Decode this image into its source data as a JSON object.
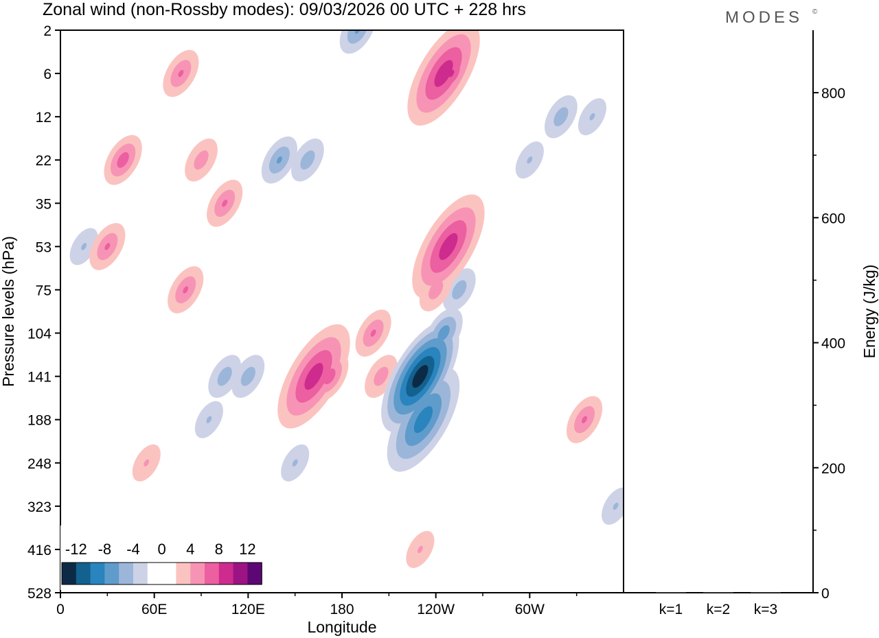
{
  "chart_data": {
    "type": "heatmap",
    "title": "Zonal wind (non-Rossby modes):  09/03/2026  00 UTC  + 228 hrs",
    "brand": "MODES",
    "brand_mark": "©",
    "xlabel": "Longitude",
    "ylabel": "Pressure levels (hPa)",
    "x_ticks": [
      "0",
      "60E",
      "120E",
      "180",
      "120W",
      "60W"
    ],
    "x_tick_degrees": [
      0,
      60,
      120,
      180,
      240,
      300
    ],
    "x_range_degrees": [
      0,
      360
    ],
    "y_ticks": [
      "2",
      "6",
      "12",
      "22",
      "35",
      "53",
      "75",
      "104",
      "141",
      "188",
      "248",
      "323",
      "416",
      "528"
    ],
    "y_order": "top-to-bottom",
    "colorbar": {
      "ticks": [
        "-12",
        "-8",
        "-4",
        "0",
        "4",
        "8",
        "12"
      ],
      "colors": [
        "#0c2a46",
        "#13618f",
        "#2a84bd",
        "#5f9ccb",
        "#9cb6da",
        "#cdd2e7",
        "#ffffff",
        "#ffffff",
        "#fbc3c0",
        "#f794b5",
        "#ec5fa0",
        "#cd2b8e",
        "#9c1484",
        "#5d0774"
      ]
    },
    "energy_panel": {
      "ylabel": "Energy (J/kg)",
      "ylim": [
        0,
        900
      ],
      "y_ticks": [
        0,
        200,
        400,
        600,
        800
      ],
      "categories": [
        "k=1",
        "k=2",
        "k=3"
      ],
      "values": [
        1,
        1,
        1
      ]
    },
    "features": [
      {
        "lon": 230,
        "lev": 141,
        "value": -13,
        "note": "strongest easterly core near 130W"
      },
      {
        "lon": 232,
        "lev": 188,
        "value": -9
      },
      {
        "lon": 245,
        "lev": 104,
        "value": -7
      },
      {
        "lon": 255,
        "lev": 75,
        "value": -5
      },
      {
        "lon": 105,
        "lev": 141,
        "value": -5
      },
      {
        "lon": 95,
        "lev": 188,
        "value": -4
      },
      {
        "lon": 120,
        "lev": 141,
        "value": -5
      },
      {
        "lon": 140,
        "lev": 22,
        "value": -6
      },
      {
        "lon": 158,
        "lev": 22,
        "value": -5
      },
      {
        "lon": 190,
        "lev": 2,
        "value": -6
      },
      {
        "lon": 15,
        "lev": 53,
        "value": -4
      },
      {
        "lon": 340,
        "lev": 12,
        "value": -4
      },
      {
        "lon": 320,
        "lev": 12,
        "value": -5
      },
      {
        "lon": 300,
        "lev": 22,
        "value": -4
      },
      {
        "lon": 355,
        "lev": 323,
        "value": -4
      },
      {
        "lon": 150,
        "lev": 248,
        "value": -4
      },
      {
        "lon": 162,
        "lev": 141,
        "value": 9,
        "note": "positive core near 165E-170E"
      },
      {
        "lon": 172,
        "lev": 141,
        "value": 7
      },
      {
        "lon": 200,
        "lev": 104,
        "value": 6
      },
      {
        "lon": 205,
        "lev": 141,
        "value": 5
      },
      {
        "lon": 245,
        "lev": 6,
        "value": 9
      },
      {
        "lon": 250,
        "lev": 6,
        "value": 8
      },
      {
        "lon": 248,
        "lev": 53,
        "value": 9
      },
      {
        "lon": 240,
        "lev": 75,
        "value": 5
      },
      {
        "lon": 335,
        "lev": 188,
        "value": 6
      },
      {
        "lon": 80,
        "lev": 75,
        "value": 6
      },
      {
        "lon": 30,
        "lev": 53,
        "value": 6
      },
      {
        "lon": 40,
        "lev": 22,
        "value": 7
      },
      {
        "lon": 105,
        "lev": 35,
        "value": 6
      },
      {
        "lon": 77,
        "lev": 6,
        "value": 6
      },
      {
        "lon": 90,
        "lev": 22,
        "value": 5
      },
      {
        "lon": 230,
        "lev": 416,
        "value": 4
      },
      {
        "lon": 55,
        "lev": 248,
        "value": 4
      }
    ]
  }
}
